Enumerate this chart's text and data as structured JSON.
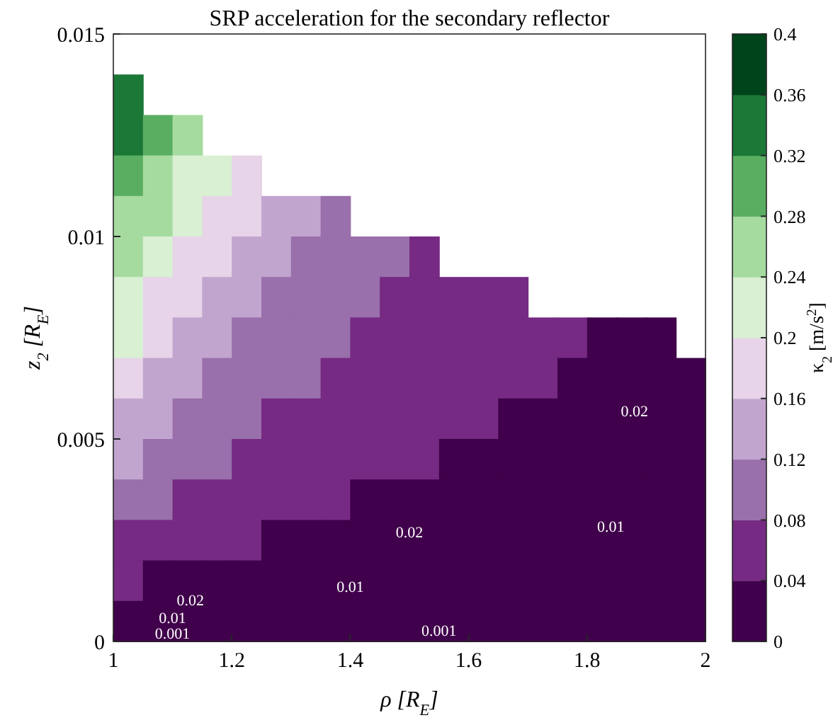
{
  "chart_data": {
    "type": "heatmap",
    "title": "SRP acceleration for the secondary reflector",
    "xlabel": "ρ [R$_{E}$]",
    "ylabel": "z$_{2}$ [R$_{E}$]",
    "clabel": "κ$_{2}$ [m/s$^{2}$]",
    "x": [
      1.025,
      1.075,
      1.125,
      1.175,
      1.225,
      1.275,
      1.325,
      1.375,
      1.425,
      1.475,
      1.525,
      1.575,
      1.625,
      1.675,
      1.725,
      1.775,
      1.825,
      1.875,
      1.925,
      1.975
    ],
    "y": [
      0.0135,
      0.0125,
      0.0115,
      0.0105,
      0.0095,
      0.0085,
      0.0075,
      0.0065,
      0.0055,
      0.0045,
      0.0035,
      0.0025,
      0.0015,
      0.0005
    ],
    "cells": [
      [
        0.35,
        null,
        null,
        null,
        null,
        null,
        null,
        null,
        null,
        null,
        null,
        null,
        null,
        null,
        null,
        null,
        null,
        null,
        null,
        null
      ],
      [
        0.33,
        0.28,
        0.25,
        null,
        null,
        null,
        null,
        null,
        null,
        null,
        null,
        null,
        null,
        null,
        null,
        null,
        null,
        null,
        null,
        null
      ],
      [
        0.3,
        0.26,
        0.23,
        0.2,
        0.17,
        null,
        null,
        null,
        null,
        null,
        null,
        null,
        null,
        null,
        null,
        null,
        null,
        null,
        null,
        null
      ],
      [
        0.27,
        0.24,
        0.21,
        0.18,
        0.16,
        0.14,
        0.13,
        0.11,
        null,
        null,
        null,
        null,
        null,
        null,
        null,
        null,
        null,
        null,
        null,
        null
      ],
      [
        0.25,
        0.21,
        0.19,
        0.16,
        0.14,
        0.13,
        0.11,
        0.1,
        0.09,
        0.08,
        0.07,
        null,
        null,
        null,
        null,
        null,
        null,
        null,
        null,
        null
      ],
      [
        0.22,
        0.19,
        0.17,
        0.15,
        0.13,
        0.11,
        0.1,
        0.09,
        0.08,
        0.07,
        0.07,
        0.06,
        0.06,
        0.05,
        null,
        null,
        null,
        null,
        null,
        null
      ],
      [
        0.2,
        0.17,
        0.15,
        0.13,
        0.11,
        0.1,
        0.09,
        0.08,
        0.07,
        0.07,
        0.06,
        0.05,
        0.05,
        0.04,
        0.04,
        0.04,
        0.03,
        0.03,
        0.03,
        null
      ],
      [
        0.17,
        0.15,
        0.13,
        0.11,
        0.1,
        0.09,
        0.08,
        0.07,
        0.06,
        0.06,
        0.05,
        0.05,
        0.04,
        0.04,
        0.04,
        0.03,
        0.03,
        0.03,
        0.03,
        0.02
      ],
      [
        0.14,
        0.12,
        0.11,
        0.1,
        0.08,
        0.07,
        0.07,
        0.06,
        0.05,
        0.05,
        0.04,
        0.04,
        0.04,
        0.03,
        0.03,
        0.03,
        0.03,
        0.02,
        0.02,
        0.02
      ],
      [
        0.12,
        0.1,
        0.09,
        0.08,
        0.07,
        0.06,
        0.05,
        0.05,
        0.04,
        0.04,
        0.04,
        0.03,
        0.03,
        0.03,
        0.02,
        0.02,
        0.02,
        0.02,
        0.02,
        0.02
      ],
      [
        0.09,
        0.08,
        0.07,
        0.06,
        0.05,
        0.05,
        0.04,
        0.04,
        0.03,
        0.03,
        0.03,
        0.03,
        0.02,
        0.02,
        0.02,
        0.02,
        0.02,
        0.01,
        0.01,
        0.01
      ],
      [
        0.07,
        0.06,
        0.05,
        0.04,
        0.04,
        0.03,
        0.03,
        0.03,
        0.02,
        0.02,
        0.02,
        0.02,
        0.02,
        0.01,
        0.01,
        0.01,
        0.01,
        0.01,
        0.01,
        0.01
      ],
      [
        0.04,
        0.03,
        0.03,
        0.03,
        0.02,
        0.02,
        0.02,
        0.02,
        0.01,
        0.01,
        0.01,
        0.01,
        0.01,
        0.01,
        0.01,
        0.01,
        0.01,
        0.01,
        0.01,
        0.01
      ],
      [
        0.013,
        0.011,
        0.01,
        0.009,
        0.008,
        0.007,
        0.006,
        0.005,
        0.005,
        0.004,
        0.004,
        0.004,
        0.003,
        0.003,
        0.003,
        0.003,
        0.002,
        0.002,
        0.002,
        0.002
      ]
    ],
    "colors": [
      "#40004b",
      "#762a83",
      "#9970ab",
      "#c2a5cf",
      "#e7d4e8",
      "#d9f0d3",
      "#a6dba0",
      "#5aae61",
      "#1b7837",
      "#00441b"
    ],
    "xlim": [
      1,
      2
    ],
    "xticks": [
      1,
      1.2,
      1.4,
      1.6,
      1.8,
      2
    ],
    "ylim": [
      0,
      0.015
    ],
    "yticks": [
      0,
      0.005,
      0.01,
      0.015
    ],
    "clim": [
      0,
      0.4
    ],
    "cticks": [
      0,
      0.04,
      0.08,
      0.12,
      0.16,
      0.2,
      0.24,
      0.28,
      0.32,
      0.36,
      0.4
    ],
    "annotations": [
      "0.02",
      "0.02",
      "0.01",
      "0.02",
      "0.01",
      "0.01",
      "0.001",
      "0.001"
    ]
  }
}
